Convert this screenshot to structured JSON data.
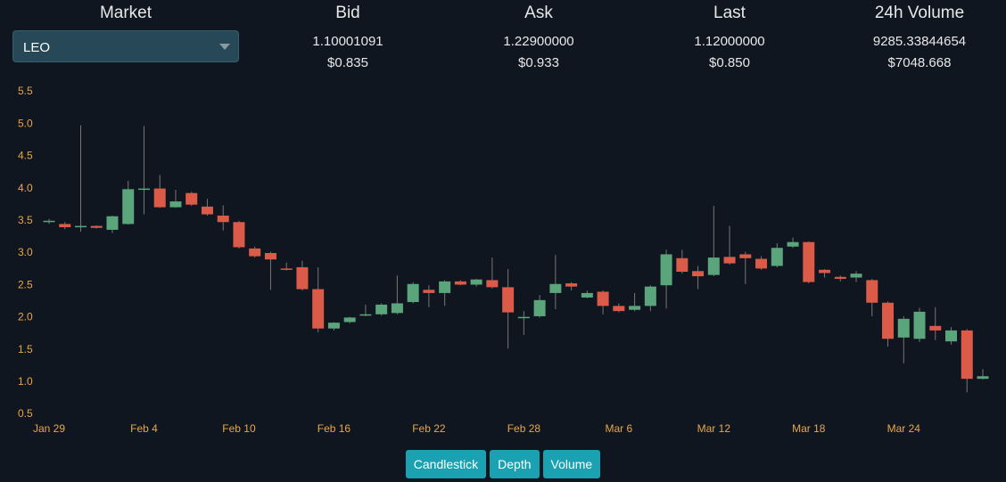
{
  "market": {
    "label": "Market",
    "selected": "LEO"
  },
  "stats": [
    {
      "label": "Bid",
      "value": "1.10001091",
      "usd": "$0.835"
    },
    {
      "label": "Ask",
      "value": "1.22900000",
      "usd": "$0.933"
    },
    {
      "label": "Last",
      "value": "1.12000000",
      "usd": "$0.850"
    },
    {
      "label": "24h Volume",
      "value": "9285.33844654",
      "usd": "$7048.668"
    }
  ],
  "chart_data": {
    "type": "candlestick",
    "categories": [
      "Jan 29",
      null,
      null,
      null,
      null,
      null,
      "Feb 4",
      null,
      null,
      null,
      null,
      null,
      "Feb 10",
      null,
      null,
      null,
      null,
      null,
      "Feb 16",
      null,
      null,
      null,
      null,
      null,
      "Feb 22",
      null,
      null,
      null,
      null,
      null,
      "Feb 28",
      null,
      null,
      null,
      null,
      null,
      "Mar 6",
      null,
      null,
      null,
      null,
      null,
      "Mar 12",
      null,
      null,
      null,
      null,
      null,
      "Mar 18",
      null,
      null,
      null,
      null,
      null,
      "Mar 24",
      null,
      null,
      null,
      null,
      null
    ],
    "open": [
      3.48,
      3.45,
      3.4,
      3.42,
      3.36,
      3.45,
      3.99,
      4.0,
      3.71,
      3.93,
      3.72,
      3.58,
      3.48,
      3.07,
      3.0,
      2.76,
      2.78,
      2.44,
      1.83,
      1.93,
      2.03,
      2.05,
      2.07,
      2.24,
      2.43,
      2.38,
      2.56,
      2.51,
      2.58,
      2.47,
      2.0,
      2.02,
      2.38,
      2.53,
      2.31,
      2.4,
      2.18,
      2.12,
      2.18,
      2.5,
      2.92,
      2.72,
      2.66,
      2.94,
      2.98,
      2.91,
      2.8,
      3.1,
      3.17,
      2.74,
      2.63,
      2.62,
      2.58,
      2.23,
      1.69,
      1.67,
      1.87,
      1.63,
      1.8,
      1.05
    ],
    "high": [
      3.53,
      3.48,
      4.98,
      3.43,
      3.58,
      4.12,
      4.97,
      4.21,
      3.98,
      3.95,
      3.84,
      3.74,
      3.5,
      3.1,
      3.02,
      2.85,
      2.88,
      2.78,
      1.93,
      2.01,
      2.2,
      2.22,
      2.65,
      2.55,
      2.5,
      2.58,
      2.58,
      2.6,
      2.93,
      2.75,
      2.1,
      2.35,
      2.97,
      2.55,
      2.42,
      2.42,
      2.22,
      2.38,
      2.5,
      3.05,
      3.05,
      2.8,
      3.73,
      3.42,
      3.02,
      2.95,
      3.15,
      3.24,
      3.18,
      2.75,
      2.65,
      2.72,
      2.6,
      2.25,
      2.02,
      2.15,
      2.16,
      1.85,
      1.82,
      1.2
    ],
    "low": [
      3.45,
      3.37,
      3.33,
      3.38,
      3.31,
      3.44,
      3.6,
      3.7,
      3.7,
      3.73,
      3.58,
      3.35,
      3.07,
      2.93,
      2.43,
      2.73,
      2.42,
      1.77,
      1.8,
      1.91,
      2.02,
      2.03,
      2.05,
      2.22,
      2.16,
      2.18,
      2.5,
      2.48,
      2.45,
      1.52,
      1.73,
      2.0,
      2.13,
      2.42,
      2.3,
      2.05,
      2.08,
      2.1,
      2.1,
      2.14,
      2.68,
      2.44,
      2.64,
      2.82,
      2.52,
      2.74,
      2.78,
      3.08,
      2.53,
      2.62,
      2.56,
      2.55,
      2.02,
      1.55,
      1.29,
      1.62,
      1.65,
      1.58,
      0.84,
      1.04
    ],
    "close": [
      3.5,
      3.4,
      3.42,
      3.39,
      3.57,
      3.99,
      4.0,
      3.71,
      3.8,
      3.75,
      3.6,
      3.48,
      3.09,
      2.95,
      2.9,
      2.75,
      2.44,
      1.83,
      1.92,
      2.0,
      2.05,
      2.2,
      2.22,
      2.52,
      2.38,
      2.56,
      2.51,
      2.59,
      2.47,
      2.08,
      2.01,
      2.27,
      2.52,
      2.48,
      2.38,
      2.18,
      2.1,
      2.18,
      2.48,
      2.98,
      2.71,
      2.64,
      2.93,
      2.84,
      2.92,
      2.76,
      3.08,
      3.17,
      2.55,
      2.69,
      2.6,
      2.68,
      2.23,
      1.67,
      1.98,
      2.09,
      1.8,
      1.8,
      1.05,
      1.09
    ],
    "up_color": "#5ba57c",
    "down_color": "#dc5a48",
    "ylim": [
      0.5,
      5.5
    ],
    "yticks": [
      0.5,
      {
        "value": 1,
        "label": "1.0"
      },
      1.5,
      {
        "value": 2,
        "label": "2.0"
      },
      2.5,
      {
        "value": 3,
        "label": "3.0"
      },
      3.5,
      {
        "value": 4,
        "label": "4.0"
      },
      4.5,
      {
        "value": 5,
        "label": "5.0"
      },
      5.5
    ]
  },
  "tabs": [
    "Candlestick",
    "Depth",
    "Volume"
  ]
}
